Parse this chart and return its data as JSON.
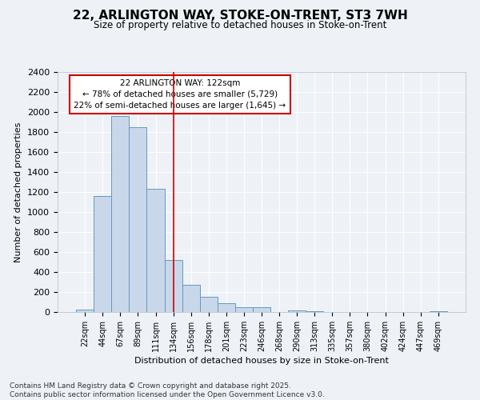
{
  "title_line1": "22, ARLINGTON WAY, STOKE-ON-TRENT, ST3 7WH",
  "title_line2": "Size of property relative to detached houses in Stoke-on-Trent",
  "xlabel": "Distribution of detached houses by size in Stoke-on-Trent",
  "ylabel": "Number of detached properties",
  "bin_labels": [
    "22sqm",
    "44sqm",
    "67sqm",
    "89sqm",
    "111sqm",
    "134sqm",
    "156sqm",
    "178sqm",
    "201sqm",
    "223sqm",
    "246sqm",
    "268sqm",
    "290sqm",
    "313sqm",
    "335sqm",
    "357sqm",
    "380sqm",
    "402sqm",
    "424sqm",
    "447sqm",
    "469sqm"
  ],
  "bar_values": [
    25,
    1160,
    1960,
    1850,
    1230,
    520,
    275,
    150,
    90,
    45,
    45,
    0,
    15,
    5,
    3,
    2,
    2,
    2,
    2,
    2,
    5
  ],
  "bar_color": "#c8d8ea",
  "bar_edge_color": "#6699bb",
  "annotation_text": "22 ARLINGTON WAY: 122sqm\n← 78% of detached houses are smaller (5,729)\n22% of semi-detached houses are larger (1,645) →",
  "annotation_box_color": "white",
  "annotation_box_edge_color": "#cc0000",
  "vline_x": 5.0,
  "vline_color": "#cc0000",
  "ylim": [
    0,
    2400
  ],
  "yticks": [
    0,
    200,
    400,
    600,
    800,
    1000,
    1200,
    1400,
    1600,
    1800,
    2000,
    2200,
    2400
  ],
  "bg_color": "#eef2f7",
  "grid_color": "white",
  "footer_line1": "Contains HM Land Registry data © Crown copyright and database right 2025.",
  "footer_line2": "Contains public sector information licensed under the Open Government Licence v3.0."
}
